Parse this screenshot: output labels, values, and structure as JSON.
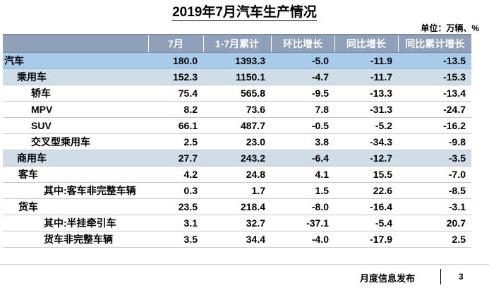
{
  "title": "2019年7月汽车生产情况",
  "unit": "单位：万辆、%",
  "columns": [
    "",
    "7月",
    "1-7月累计",
    "环比增长",
    "同比增长",
    "同比累计增长"
  ],
  "rows": [
    {
      "name": "汽车",
      "level": "level0",
      "values": [
        "180.0",
        "1393.3",
        "-5.0",
        "-11.9",
        "-13.5"
      ]
    },
    {
      "name": "乘用车",
      "level": "level1",
      "values": [
        "152.3",
        "1150.1",
        "-4.7",
        "-11.7",
        "-15.3"
      ]
    },
    {
      "name": "轿车",
      "level": "level2",
      "values": [
        "75.4",
        "565.8",
        "-9.5",
        "-13.3",
        "-13.4"
      ]
    },
    {
      "name": "MPV",
      "level": "level2",
      "values": [
        "8.2",
        "73.6",
        "7.8",
        "-31.3",
        "-24.7"
      ]
    },
    {
      "name": "SUV",
      "level": "level2",
      "values": [
        "66.1",
        "487.7",
        "-0.5",
        "-5.2",
        "-16.2"
      ]
    },
    {
      "name": "交叉型乘用车",
      "level": "level2",
      "values": [
        "2.5",
        "23.0",
        "3.8",
        "-34.3",
        "-9.8"
      ]
    },
    {
      "name": "商用车",
      "level": "level1",
      "values": [
        "27.7",
        "243.2",
        "-6.4",
        "-12.7",
        "-3.5"
      ]
    },
    {
      "name": "客车",
      "level": "level2b",
      "values": [
        "4.2",
        "24.8",
        "4.1",
        "15.5",
        "-7.0"
      ]
    },
    {
      "name": "其中:客车非完整车辆",
      "level": "level3",
      "values": [
        "0.3",
        "1.7",
        "1.5",
        "22.6",
        "-8.5"
      ]
    },
    {
      "name": "货车",
      "level": "level2b",
      "values": [
        "23.5",
        "218.4",
        "-8.0",
        "-16.4",
        "-3.1"
      ]
    },
    {
      "name": "其中:半挂牵引车",
      "level": "level3",
      "values": [
        "3.1",
        "32.7",
        "-37.1",
        "-5.4",
        "20.7"
      ]
    },
    {
      "name": "货车非完整车辆",
      "level": "level3",
      "values": [
        "3.5",
        "34.4",
        "-4.0",
        "-17.9",
        "2.5"
      ]
    }
  ],
  "footer": {
    "text": "月度信息发布",
    "page_number": "3"
  },
  "colors": {
    "header_bg": "#8fa0b8",
    "total_row_bg": "#a9cbea",
    "category_row_bg": "#cfdde9"
  }
}
